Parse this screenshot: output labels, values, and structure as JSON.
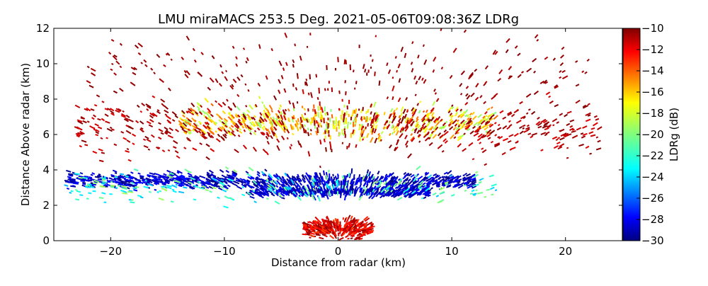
{
  "chart_data": {
    "type": "heatmap",
    "title": "LMU miraMACS 253.5 Deg. 2021-05-06T09:08:36Z  LDRg",
    "xlabel": "Distance from radar (km)",
    "ylabel": "Distance Above radar  (km)",
    "xlim": [
      -25,
      25
    ],
    "ylim": [
      0,
      12
    ],
    "x_ticks": [
      -20,
      -10,
      0,
      10,
      20
    ],
    "x_tick_labels": [
      "−20",
      "−10",
      "0",
      "10",
      "20"
    ],
    "y_ticks": [
      0,
      2,
      4,
      6,
      8,
      10,
      12
    ],
    "y_tick_labels": [
      "0",
      "2",
      "4",
      "6",
      "8",
      "10",
      "12"
    ],
    "grid": false,
    "colorbar": {
      "label": "LDRg (dB)",
      "min": -30,
      "max": -10,
      "ticks": [
        -10,
        -12,
        -14,
        -16,
        -18,
        -20,
        -22,
        -24,
        -26,
        -28,
        -30
      ],
      "tick_labels": [
        "−10",
        "−12",
        "−14",
        "−16",
        "−18",
        "−20",
        "−22",
        "−24",
        "−26",
        "−28",
        "−30"
      ],
      "colormap": "jet",
      "colors": [
        "#00007f",
        "#0000ff",
        "#007fff",
        "#00ffff",
        "#7fff7f",
        "#ffff00",
        "#ff7f00",
        "#ff0000",
        "#7f0000"
      ]
    },
    "features": [
      {
        "x_range": [
          -24,
          12
        ],
        "height_center": 3.4,
        "height_spread": 0.45,
        "ldr_db": [
          -30,
          -27
        ],
        "density": 900
      },
      {
        "x_range": [
          -8,
          8
        ],
        "height_center": 2.8,
        "height_spread": 0.3,
        "ldr_db": [
          -30,
          -27
        ],
        "density": 500
      },
      {
        "x_range": [
          -24,
          14
        ],
        "height_center": 3.1,
        "height_spread": 0.8,
        "ldr_db": [
          -24,
          -19
        ],
        "density": 260
      },
      {
        "x_range": [
          -14,
          14
        ],
        "height_center": 6.7,
        "height_spread": 0.9,
        "ldr_db": [
          -20,
          -14
        ],
        "density": 550
      },
      {
        "x_range": [
          -23,
          23
        ],
        "height_center": 6.5,
        "height_spread": 1.6,
        "ldr_db": [
          -12,
          -10
        ],
        "density": 600
      },
      {
        "x_range": [
          -3,
          3
        ],
        "height_center": 0.7,
        "height_spread": 0.5,
        "ldr_db": [
          -14,
          -10
        ],
        "density": 350
      },
      {
        "x_range": [
          -22,
          22
        ],
        "height_center": 9.5,
        "height_spread": 2.0,
        "ldr_db": [
          -11,
          -10
        ],
        "density": 220
      }
    ]
  }
}
